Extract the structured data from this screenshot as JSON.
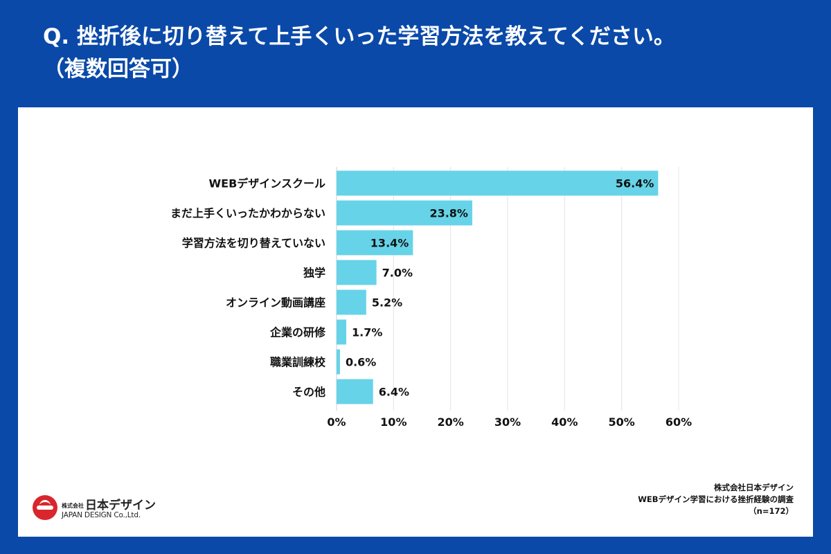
{
  "header": {
    "title_line1": "Q. 挫折後に切り替えて上手くいった学習方法を教えてください。",
    "title_line2": "（複数回答可）"
  },
  "chart_data": {
    "type": "bar",
    "orientation": "horizontal",
    "categories": [
      "WEBデザインスクール",
      "まだ上手くいったかわからない",
      "学習方法を切り替えていない",
      "独学",
      "オンライン動画講座",
      "企業の研修",
      "職業訓練校",
      "その他"
    ],
    "values": [
      56.4,
      23.8,
      13.4,
      7.0,
      5.2,
      1.7,
      0.6,
      6.4
    ],
    "value_labels": [
      "56.4%",
      "23.8%",
      "13.4%",
      "7.0%",
      "5.2%",
      "1.7%",
      "0.6%",
      "6.4%"
    ],
    "xlim": [
      0,
      60
    ],
    "xticks": [
      0,
      10,
      20,
      30,
      40,
      50,
      60
    ],
    "xtick_labels": [
      "0%",
      "10%",
      "20%",
      "30%",
      "40%",
      "50%",
      "60%"
    ],
    "bar_color": "#66d3e8",
    "grid": true
  },
  "source": {
    "company": "株式会社日本デザイン",
    "survey": "WEBデザイン学習における挫折経験の調査",
    "sample": "（n=172）"
  },
  "logo": {
    "small_text": "株式会社",
    "name_ja": "日本デザイン",
    "name_en": "JAPAN DESIGN Co.,Ltd."
  },
  "colors": {
    "background": "#0a49a8",
    "panel": "#ffffff",
    "bar": "#66d3e8",
    "logo_red": "#d9262c"
  }
}
